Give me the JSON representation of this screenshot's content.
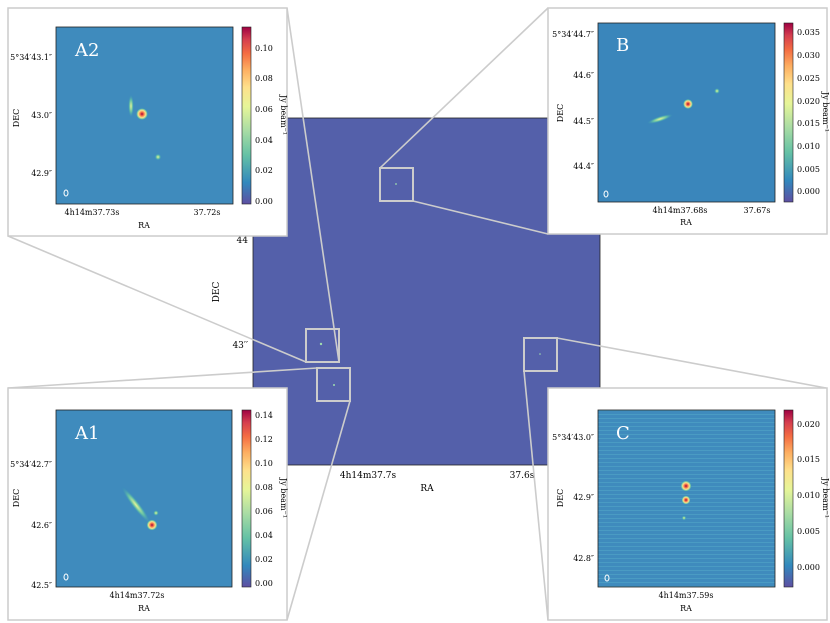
{
  "main": {
    "xlabel": "RA",
    "ylabel": "DEC",
    "xticks": [
      "4h14m37.7s",
      "37.6s"
    ],
    "yticks": [
      "44",
      "43′′"
    ]
  },
  "panels": {
    "A2": {
      "label": "A2",
      "xlabel": "RA",
      "ylabel": "DEC",
      "xticks": [
        "4h14m37.73s",
        "37.72s"
      ],
      "yticks": [
        "5°34′43.1″",
        "43.0″",
        "42.9″"
      ],
      "colorbar_label": "Jy beam⁻¹",
      "colorbar_ticks": [
        "0.10",
        "0.08",
        "0.06",
        "0.04",
        "0.02",
        "0.00"
      ]
    },
    "B": {
      "label": "B",
      "xlabel": "RA",
      "ylabel": "DEC",
      "xticks": [
        "4h14m37.68s",
        "37.67s"
      ],
      "yticks": [
        "5°34′44.7″",
        "44.6″",
        "44.5″",
        "44.4″"
      ],
      "colorbar_label": "Jy beam⁻¹",
      "colorbar_ticks": [
        "0.035",
        "0.030",
        "0.025",
        "0.020",
        "0.015",
        "0.010",
        "0.005",
        "0.000"
      ]
    },
    "A1": {
      "label": "A1",
      "xlabel": "RA",
      "ylabel": "DEC",
      "xticks": [
        "4h14m37.72s"
      ],
      "yticks": [
        "5°34′42.7″",
        "42.6″",
        "42.5″"
      ],
      "colorbar_label": "Jy beam⁻¹",
      "colorbar_ticks": [
        "0.14",
        "0.12",
        "0.10",
        "0.08",
        "0.06",
        "0.04",
        "0.02",
        "0.00"
      ]
    },
    "C": {
      "label": "C",
      "xlabel": "RA",
      "ylabel": "DEC",
      "xticks": [
        "4h14m37.59s"
      ],
      "yticks": [
        "5°34′43.0″",
        "42.9″",
        "42.8″"
      ],
      "colorbar_label": "Jy beam⁻¹",
      "colorbar_ticks": [
        "0.020",
        "0.015",
        "0.010",
        "0.005",
        "0.000"
      ]
    }
  },
  "colors": {
    "background_map": "#5460aa",
    "zoom_lines": "#cccccc",
    "colormap": [
      "#5e4fa2",
      "#3288bd",
      "#66c2a5",
      "#abdda4",
      "#e6f598",
      "#fee08b",
      "#fdae61",
      "#f46d43",
      "#d53e4f",
      "#9e0142"
    ]
  }
}
